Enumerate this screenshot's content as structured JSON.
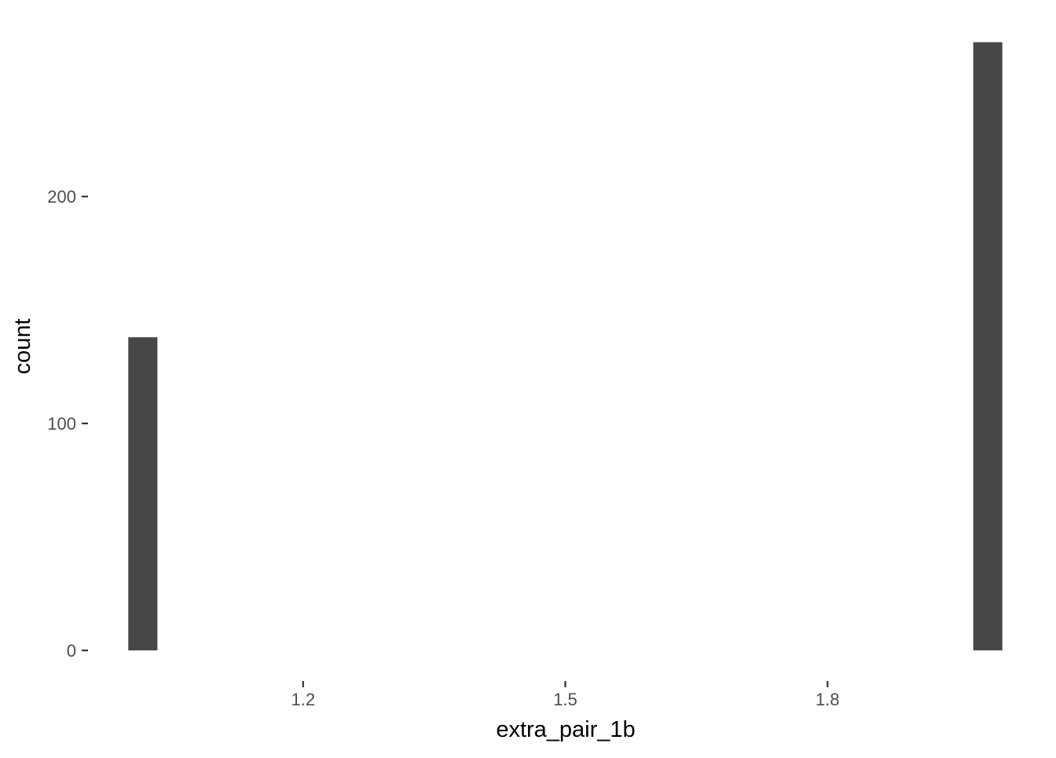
{
  "chart_data": {
    "type": "bar",
    "title": "",
    "xlabel": "extra_pair_1b",
    "ylabel": "count",
    "bins": [
      {
        "x_start": 1.0,
        "x_end": 1.0333,
        "count": 138
      },
      {
        "x_start": 1.9667,
        "x_end": 2.0,
        "count": 268
      }
    ],
    "xlim": [
      0.9548,
      2.0452
    ],
    "ylim": [
      0,
      281.4
    ],
    "x_ticks": [
      1.2,
      1.5,
      1.8
    ],
    "x_tick_labels": [
      "1.2",
      "1.5",
      "1.8"
    ],
    "y_ticks": [
      0,
      100,
      200
    ],
    "y_tick_labels": [
      "0",
      "100",
      "200"
    ],
    "grid": false,
    "bar_color": "#474747",
    "background": "#ffffff"
  }
}
